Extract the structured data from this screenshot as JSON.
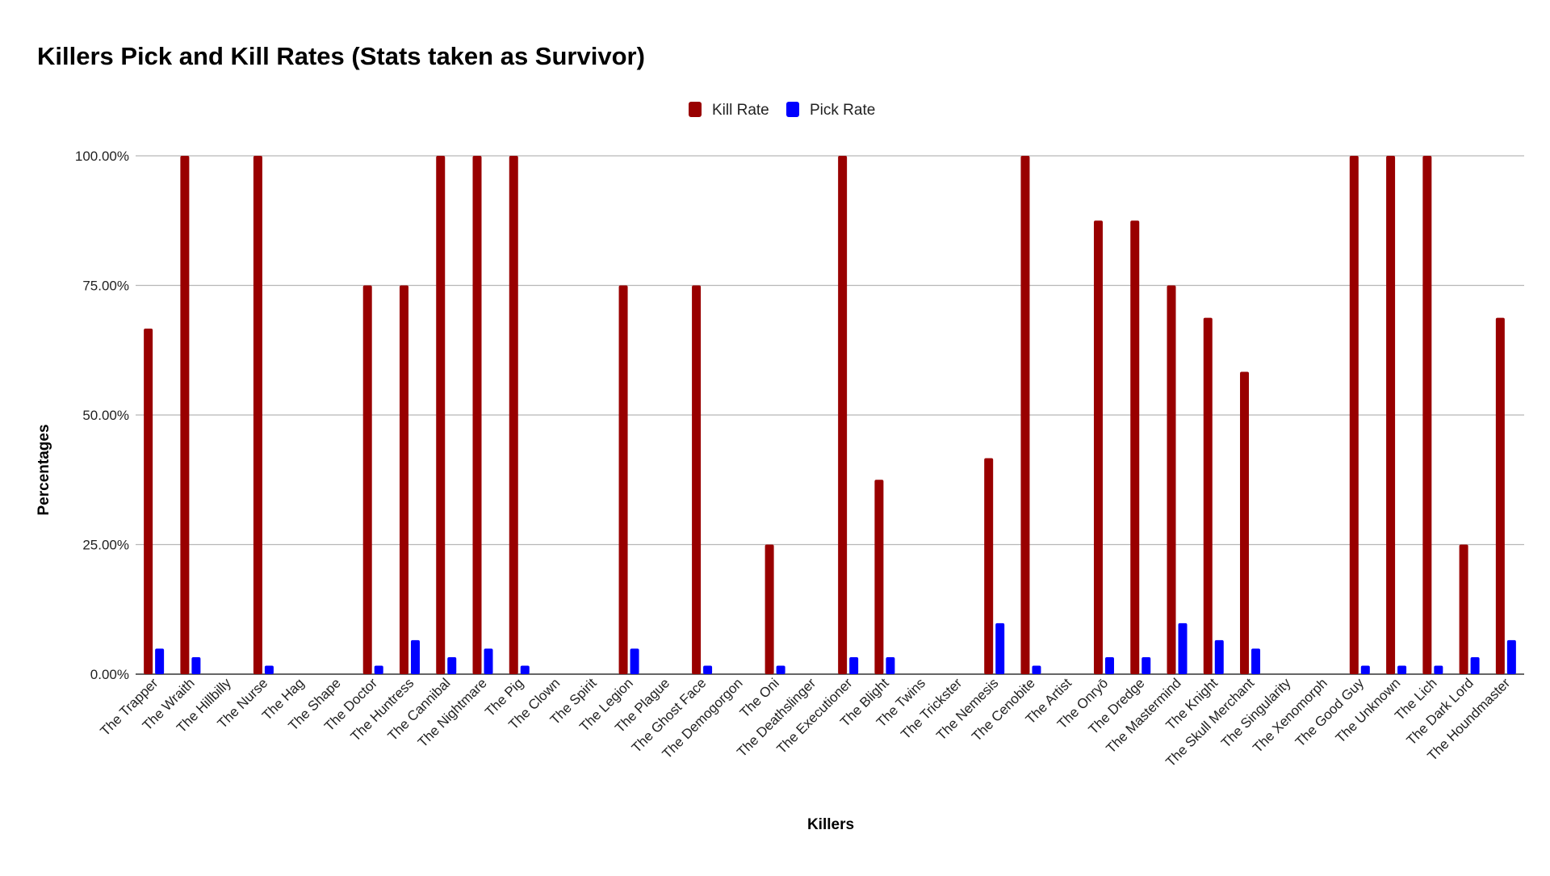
{
  "chart_data": {
    "type": "bar",
    "title": "Killers Pick and Kill Rates (Stats taken as Survivor)",
    "xlabel": "Killers",
    "ylabel": "Percentages",
    "ylim": [
      0,
      100
    ],
    "yticks": [
      0,
      25,
      50,
      75,
      100
    ],
    "ytick_labels": [
      "0.00%",
      "25.00%",
      "50.00%",
      "75.00%",
      "100.00%"
    ],
    "grid": true,
    "legend_position": "top-center",
    "categories": [
      "The Trapper",
      "The Wraith",
      "The Hillbilly",
      "The Nurse",
      "The Hag",
      "The Shape",
      "The Doctor",
      "The Huntress",
      "The Cannibal",
      "The Nightmare",
      "The Pig",
      "The Clown",
      "The Spirit",
      "The Legion",
      "The Plague",
      "The Ghost Face",
      "The Demogorgon",
      "The Oni",
      "The Deathslinger",
      "The Executioner",
      "The Blight",
      "The Twins",
      "The Trickster",
      "The Nemesis",
      "The Cenobite",
      "The Artist",
      "The Onryō",
      "The Dredge",
      "The Mastermind",
      "The Knight",
      "The Skull Merchant",
      "The Singularity",
      "The Xenomorph",
      "The Good Guy",
      "The Unknown",
      "The Lich",
      "The Dark Lord",
      "The Houndmaster"
    ],
    "series": [
      {
        "name": "Kill Rate",
        "color": "#990000",
        "values": [
          66.67,
          100,
          0,
          100,
          0,
          0,
          75,
          75,
          100,
          100,
          100,
          0,
          0,
          75,
          0,
          75,
          0,
          25,
          0,
          100,
          37.5,
          0,
          0,
          41.67,
          100,
          0,
          87.5,
          87.5,
          75,
          68.75,
          58.33,
          0,
          0,
          100,
          100,
          100,
          25,
          68.75
        ]
      },
      {
        "name": "Pick Rate",
        "color": "#0000ff",
        "values": [
          4.92,
          3.28,
          0,
          1.64,
          0,
          0,
          1.64,
          6.56,
          3.28,
          4.92,
          1.64,
          0,
          0,
          4.92,
          0,
          1.64,
          0,
          1.64,
          0,
          3.28,
          3.28,
          0,
          0,
          9.84,
          1.64,
          0,
          3.28,
          3.28,
          9.84,
          6.56,
          4.92,
          0,
          0,
          1.64,
          1.64,
          1.64,
          3.28,
          6.56
        ]
      }
    ]
  }
}
